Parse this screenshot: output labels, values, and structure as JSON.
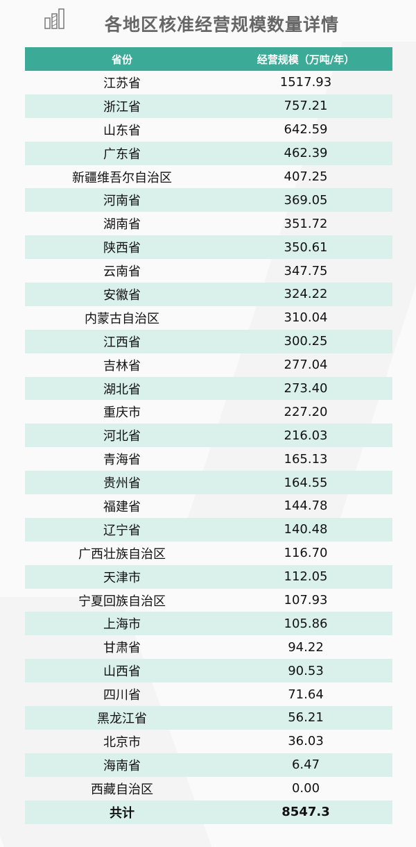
{
  "title": "各地区核准经营规模数量详情",
  "colors": {
    "header_bg": "#3bab97",
    "stripe": "#d9f0eb",
    "title": "#666666"
  },
  "logo_icon": "bar-chart-icon",
  "table": {
    "headers": [
      "省份",
      "经营规模（万吨/年）"
    ],
    "rows": [
      [
        "江苏省",
        "1517.93"
      ],
      [
        "浙江省",
        "757.21"
      ],
      [
        "山东省",
        "642.59"
      ],
      [
        "广东省",
        "462.39"
      ],
      [
        "新疆维吾尔自治区",
        "407.25"
      ],
      [
        "河南省",
        "369.05"
      ],
      [
        "湖南省",
        "351.72"
      ],
      [
        "陕西省",
        "350.61"
      ],
      [
        "云南省",
        "347.75"
      ],
      [
        "安徽省",
        "324.22"
      ],
      [
        "内蒙古自治区",
        "310.04"
      ],
      [
        "江西省",
        "300.25"
      ],
      [
        "吉林省",
        "277.04"
      ],
      [
        "湖北省",
        "273.40"
      ],
      [
        "重庆市",
        "227.20"
      ],
      [
        "河北省",
        "216.03"
      ],
      [
        "青海省",
        "165.13"
      ],
      [
        "贵州省",
        "164.55"
      ],
      [
        "福建省",
        "144.78"
      ],
      [
        "辽宁省",
        "140.48"
      ],
      [
        "广西壮族自治区",
        "116.70"
      ],
      [
        "天津市",
        "112.05"
      ],
      [
        "宁夏回族自治区",
        "107.93"
      ],
      [
        "上海市",
        "105.86"
      ],
      [
        "甘肃省",
        "94.22"
      ],
      [
        "山西省",
        "90.53"
      ],
      [
        "四川省",
        "71.64"
      ],
      [
        "黑龙江省",
        "56.21"
      ],
      [
        "北京市",
        "36.03"
      ],
      [
        "海南省",
        "6.47"
      ],
      [
        "西藏自治区",
        "0.00"
      ]
    ],
    "total": [
      "共计",
      "8547.3"
    ]
  }
}
